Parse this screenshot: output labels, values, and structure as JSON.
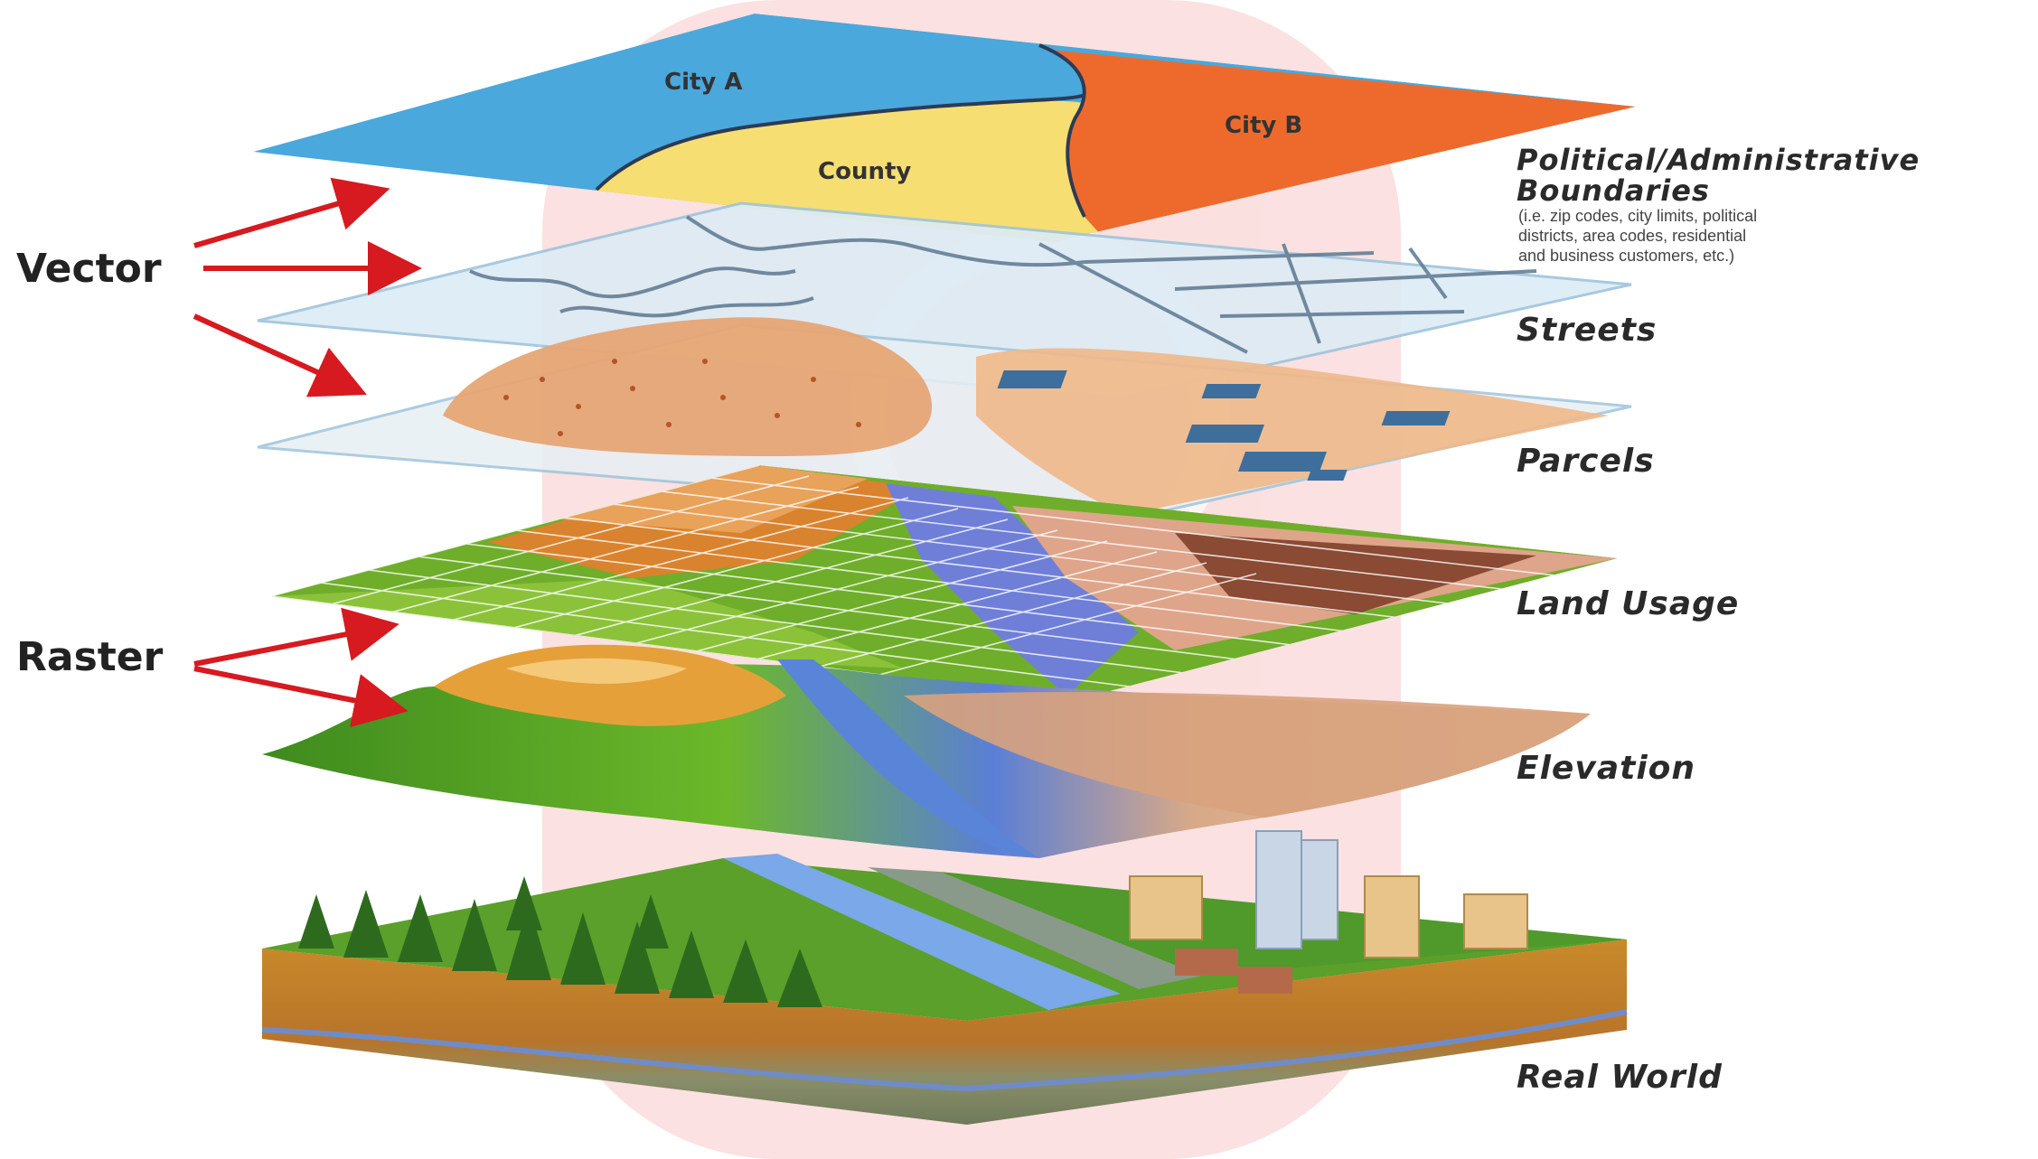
{
  "groups": {
    "vector": "Vector",
    "raster": "Raster"
  },
  "layers": {
    "boundaries": {
      "title_line1": "Political/Administrative",
      "title_line2": "Boundaries",
      "note_line1": "(i.e. zip codes, city limits, political",
      "note_line2": "districts, area codes, residential",
      "note_line3": "and business customers, etc.)",
      "regions": {
        "city_a": "City A",
        "city_b": "City B",
        "county": "County"
      }
    },
    "streets": {
      "title": "Streets"
    },
    "parcels": {
      "title": "Parcels"
    },
    "land_usage": {
      "title": "Land Usage"
    },
    "elevation": {
      "title": "Elevation"
    },
    "real_world": {
      "title": "Real World"
    }
  },
  "colors": {
    "arrow": "#d71920",
    "city_a": "#4aa8dc",
    "city_b": "#ee6a2c",
    "county": "#f6de72",
    "watermark": "#f4a8a8"
  }
}
